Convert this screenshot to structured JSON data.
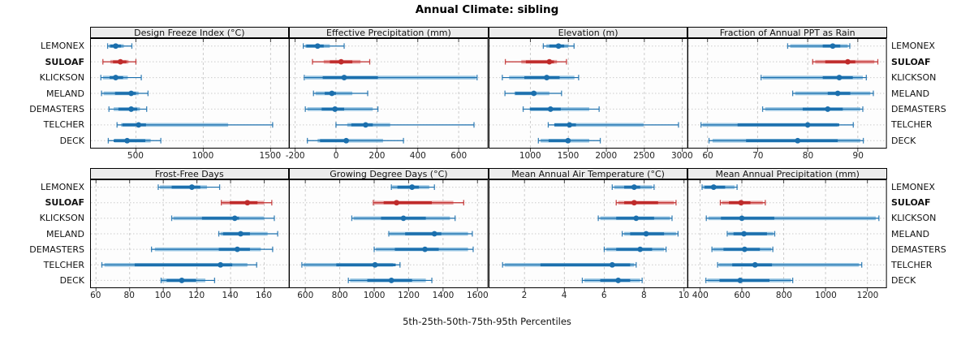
{
  "title": "Annual Climate: sibling",
  "xlabel": "5th-25th-50th-75th-95th Percentiles",
  "stations": [
    "LEMONEX",
    "SULOAF",
    "KLICKSON",
    "MELAND",
    "DEMASTERS",
    "TELCHER",
    "DECK"
  ],
  "highlight_station": "SULOAF",
  "colors": {
    "series_main": "#1b6fad",
    "series_band": "#7fb8dc",
    "highlight_main": "#bf2b2b",
    "highlight_band": "#e59090",
    "grid": "#cccccc",
    "strip_bg": "#ececec",
    "panel_border": "#000000"
  },
  "chart_data": {
    "type": "dotplot",
    "percentile_scheme": "5th-25th-50th-75th-95th",
    "note": "p = [p5,p25,p50,p75,p95]; band = light inner band [lo,hi]",
    "panels": [
      {
        "title": "Design Freeze Index (°C)",
        "xlim": [
          160,
          1640
        ],
        "ticks": [
          500,
          1000,
          1500
        ],
        "series": [
          {
            "name": "LEMONEX",
            "p": [
              290,
              310,
              350,
              390,
              470
            ],
            "band": [
              300,
              410
            ]
          },
          {
            "name": "SULOAF",
            "p": [
              255,
              330,
              385,
              430,
              500
            ],
            "band": [
              310,
              445
            ]
          },
          {
            "name": "KLICKSON",
            "p": [
              240,
              305,
              350,
              405,
              540
            ],
            "band": [
              255,
              440
            ]
          },
          {
            "name": "MELAND",
            "p": [
              245,
              345,
              465,
              500,
              590
            ],
            "band": [
              260,
              520
            ]
          },
          {
            "name": "DEMASTERS",
            "p": [
              300,
              370,
              465,
              510,
              580
            ],
            "band": [
              335,
              530
            ]
          },
          {
            "name": "TELCHER",
            "p": [
              360,
              400,
              520,
              575,
              1515
            ],
            "band": [
              390,
              1185
            ]
          },
          {
            "name": "DECK",
            "p": [
              295,
              335,
              435,
              570,
              685
            ],
            "band": [
              340,
              610
            ]
          }
        ]
      },
      {
        "title": "Effective Precipitation (mm)",
        "xlim": [
          -230,
          745
        ],
        "ticks": [
          -200,
          0,
          200,
          400,
          600
        ],
        "series": [
          {
            "name": "LEMONEX",
            "p": [
              -160,
              -145,
              -90,
              -60,
              40
            ],
            "band": [
              -150,
              -30
            ]
          },
          {
            "name": "SULOAF",
            "p": [
              -115,
              -30,
              25,
              80,
              165
            ],
            "band": [
              -60,
              120
            ]
          },
          {
            "name": "KLICKSON",
            "p": [
              -155,
              -65,
              40,
              205,
              690
            ],
            "band": [
              -150,
              685
            ]
          },
          {
            "name": "MELAND",
            "p": [
              -110,
              -55,
              -20,
              0,
              155
            ],
            "band": [
              -100,
              80
            ]
          },
          {
            "name": "DEMASTERS",
            "p": [
              -150,
              -70,
              -5,
              40,
              205
            ],
            "band": [
              -140,
              180
            ]
          },
          {
            "name": "TELCHER",
            "p": [
              0,
              75,
              145,
              180,
              675
            ],
            "band": [
              55,
              265
            ]
          },
          {
            "name": "DECK",
            "p": [
              -140,
              -78,
              50,
              60,
              330
            ],
            "band": [
              -90,
              230
            ]
          }
        ]
      },
      {
        "title": "Elevation (m)",
        "xlim": [
          450,
          3075
        ],
        "ticks": [
          1000,
          1500,
          2000,
          2500,
          3000
        ],
        "series": [
          {
            "name": "LEMONEX",
            "p": [
              1170,
              1250,
              1370,
              1445,
              1575
            ],
            "band": [
              1210,
              1500
            ]
          },
          {
            "name": "SULOAF",
            "p": [
              670,
              940,
              1250,
              1310,
              1475
            ],
            "band": [
              880,
              1350
            ]
          },
          {
            "name": "KLICKSON",
            "p": [
              630,
              920,
              1215,
              1385,
              1635
            ],
            "band": [
              720,
              1580
            ]
          },
          {
            "name": "MELAND",
            "p": [
              665,
              800,
              1045,
              1080,
              1410
            ],
            "band": [
              790,
              1250
            ]
          },
          {
            "name": "DEMASTERS",
            "p": [
              905,
              995,
              1265,
              1400,
              1905
            ],
            "band": [
              990,
              1775
            ]
          },
          {
            "name": "TELCHER",
            "p": [
              1235,
              1315,
              1515,
              1600,
              2950
            ],
            "band": [
              1315,
              2490
            ]
          },
          {
            "name": "DECK",
            "p": [
              1105,
              1240,
              1495,
              1525,
              1920
            ],
            "band": [
              1135,
              1775
            ]
          }
        ]
      },
      {
        "title": "Fraction of Annual PPT as Rain",
        "xlim": [
          56,
          95.8
        ],
        "ticks": [
          60,
          70,
          80,
          90
        ],
        "series": [
          {
            "name": "LEMONEX",
            "p": [
              76,
              83,
              85,
              86.5,
              88.4
            ],
            "band": [
              76.5,
              88
            ]
          },
          {
            "name": "SULOAF",
            "p": [
              81,
              83.5,
              88,
              89.5,
              94
            ],
            "band": [
              81.5,
              93.3
            ]
          },
          {
            "name": "KLICKSON",
            "p": [
              70.7,
              83,
              86.3,
              89,
              91.7
            ],
            "band": [
              71,
              91
            ]
          },
          {
            "name": "MELAND",
            "p": [
              77,
              84,
              86,
              88.5,
              93.1
            ],
            "band": [
              77.5,
              92.5
            ]
          },
          {
            "name": "DEMASTERS",
            "p": [
              71,
              79,
              84,
              87,
              91
            ],
            "band": [
              71.5,
              90.5
            ]
          },
          {
            "name": "TELCHER",
            "p": [
              58.7,
              66,
              80,
              86.3,
              89.1
            ],
            "band": [
              59,
              86
            ]
          },
          {
            "name": "DECK",
            "p": [
              60.3,
              67.7,
              78,
              86,
              91.1
            ],
            "band": [
              61,
              90.5
            ]
          }
        ]
      },
      {
        "title": "Frost-Free Days",
        "xlim": [
          56.5,
          175
        ],
        "ticks": [
          60,
          80,
          100,
          120,
          140,
          160
        ],
        "series": [
          {
            "name": "LEMONEX",
            "p": [
              97,
              105,
              117,
              122,
              133.5
            ],
            "band": [
              98,
              126
            ]
          },
          {
            "name": "SULOAF",
            "p": [
              134.5,
              139.5,
              150,
              156,
              164.5
            ],
            "band": [
              135,
              160
            ]
          },
          {
            "name": "KLICKSON",
            "p": [
              105,
              123,
              142.5,
              145,
              166
            ],
            "band": [
              106,
              160
            ]
          },
          {
            "name": "MELAND",
            "p": [
              133,
              135.5,
              146,
              151.5,
              168
            ],
            "band": [
              134,
              162
            ]
          },
          {
            "name": "DEMASTERS",
            "p": [
              93,
              133,
              144,
              151.5,
              165
            ],
            "band": [
              95,
              158
            ]
          },
          {
            "name": "TELCHER",
            "p": [
              63.5,
              83,
              134,
              141,
              155.5
            ],
            "band": [
              65,
              150
            ]
          },
          {
            "name": "DECK",
            "p": [
              98.7,
              102,
              111,
              119.5,
              130.5
            ],
            "band": [
              99,
              125
            ]
          }
        ]
      },
      {
        "title": "Growing Degree Days (°C)",
        "xlim": [
          505,
          1663
        ],
        "ticks": [
          600,
          800,
          1000,
          1200,
          1400,
          1600
        ],
        "series": [
          {
            "name": "LEMONEX",
            "p": [
              1100,
              1135,
              1220,
              1260,
              1350
            ],
            "band": [
              1105,
              1320
            ]
          },
          {
            "name": "SULOAF",
            "p": [
              995,
              1055,
              1130,
              1335,
              1520
            ],
            "band": [
              1000,
              1460
            ]
          },
          {
            "name": "KLICKSON",
            "p": [
              870,
              1040,
              1170,
              1300,
              1470
            ],
            "band": [
              880,
              1440
            ]
          },
          {
            "name": "MELAND",
            "p": [
              1085,
              1180,
              1350,
              1390,
              1570
            ],
            "band": [
              1090,
              1545
            ]
          },
          {
            "name": "DEMASTERS",
            "p": [
              1000,
              1120,
              1295,
              1375,
              1575
            ],
            "band": [
              1010,
              1545
            ]
          },
          {
            "name": "TELCHER",
            "p": [
              580,
              780,
              1005,
              1125,
              1150
            ],
            "band": [
              590,
              1110
            ]
          },
          {
            "name": "DECK",
            "p": [
              850,
              960,
              1100,
              1220,
              1335
            ],
            "band": [
              860,
              1300
            ]
          }
        ]
      },
      {
        "title": "Mean Annual Air Temperature (°C)",
        "xlim": [
          0.2,
          10.2
        ],
        "ticks": [
          2,
          4,
          6,
          8,
          10
        ],
        "series": [
          {
            "name": "LEMONEX",
            "p": [
              6.4,
              7.0,
              7.5,
              7.8,
              8.5
            ],
            "band": [
              6.5,
              8.4
            ]
          },
          {
            "name": "SULOAF",
            "p": [
              6.6,
              7.0,
              7.5,
              8.7,
              9.6
            ],
            "band": [
              6.7,
              9.5
            ]
          },
          {
            "name": "KLICKSON",
            "p": [
              5.7,
              6.6,
              7.6,
              8.5,
              9.4
            ],
            "band": [
              5.8,
              9.3
            ]
          },
          {
            "name": "MELAND",
            "p": [
              6.9,
              7.3,
              8.1,
              9.0,
              9.7
            ],
            "band": [
              7.0,
              9.6
            ]
          },
          {
            "name": "DEMASTERS",
            "p": [
              6.0,
              6.6,
              7.8,
              8.4,
              9.1
            ],
            "band": [
              6.1,
              9.0
            ]
          },
          {
            "name": "TELCHER",
            "p": [
              0.9,
              2.8,
              6.4,
              7.3,
              7.6
            ],
            "band": [
              1.0,
              7.5
            ]
          },
          {
            "name": "DECK",
            "p": [
              4.9,
              5.8,
              6.7,
              7.3,
              7.9
            ],
            "band": [
              5.0,
              7.8
            ]
          }
        ]
      },
      {
        "title": "Mean Annual Precipitation (mm)",
        "xlim": [
          340,
          1293
        ],
        "ticks": [
          400,
          600,
          800,
          1000,
          1200
        ],
        "series": [
          {
            "name": "LEMONEX",
            "p": [
              410,
              422,
              465,
              520,
              577
            ],
            "band": [
              415,
              565
            ]
          },
          {
            "name": "SULOAF",
            "p": [
              497,
              538,
              596,
              641,
              712
            ],
            "band": [
              505,
              700
            ]
          },
          {
            "name": "KLICKSON",
            "p": [
              430,
              500,
              600,
              755,
              1255
            ],
            "band": [
              440,
              1240
            ]
          },
          {
            "name": "MELAND",
            "p": [
              530,
              560,
              610,
              720,
              757
            ],
            "band": [
              535,
              750
            ]
          },
          {
            "name": "DEMASTERS",
            "p": [
              457,
              512,
              613,
              686,
              748
            ],
            "band": [
              462,
              740
            ]
          },
          {
            "name": "TELCHER",
            "p": [
              484,
              554,
              663,
              744,
              1173
            ],
            "band": [
              490,
              1160
            ]
          },
          {
            "name": "DECK",
            "p": [
              428,
              493,
              592,
              732,
              843
            ],
            "band": [
              435,
              835
            ]
          }
        ]
      }
    ]
  }
}
